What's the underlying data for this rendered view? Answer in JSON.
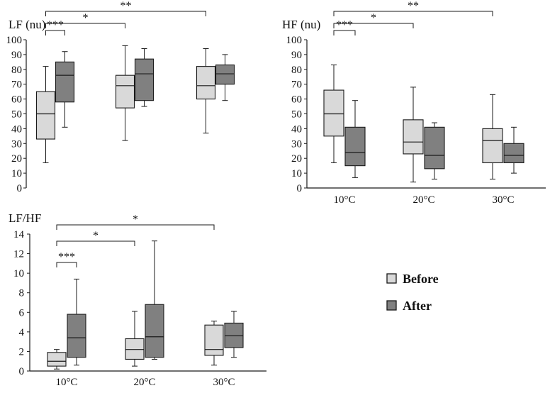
{
  "chart_data": [
    {
      "type": "box",
      "title": "LF (nu)",
      "ylim": [
        0,
        100
      ],
      "yticks": [
        0,
        10,
        20,
        30,
        40,
        50,
        60,
        70,
        80,
        90,
        100
      ],
      "categories": [
        "10°C",
        "20°C",
        "30°C"
      ],
      "show_category_labels": false,
      "series": [
        {
          "name": "Before",
          "boxes": [
            {
              "min": 17,
              "q1": 33,
              "median": 50,
              "q3": 65,
              "max": 82
            },
            {
              "min": 32,
              "q1": 54,
              "median": 69,
              "q3": 76,
              "max": 96
            },
            {
              "min": 37,
              "q1": 60,
              "median": 69,
              "q3": 82,
              "max": 94
            }
          ]
        },
        {
          "name": "After",
          "boxes": [
            {
              "min": 41,
              "q1": 58,
              "median": 76,
              "q3": 85,
              "max": 92
            },
            {
              "min": 55,
              "q1": 59,
              "median": 77,
              "q3": 87,
              "max": 94
            },
            {
              "min": 59,
              "q1": 70,
              "median": 77,
              "q3": 83,
              "max": 90
            }
          ]
        }
      ],
      "significance": [
        {
          "from": 0,
          "to": 0,
          "label": "***"
        },
        {
          "from": 0,
          "to": 1,
          "label": "*"
        },
        {
          "from": 0,
          "to": 2,
          "label": "**"
        }
      ]
    },
    {
      "type": "box",
      "title": "HF (nu)",
      "ylim": [
        0,
        100
      ],
      "yticks": [
        0,
        10,
        20,
        30,
        40,
        50,
        60,
        70,
        80,
        90,
        100
      ],
      "categories": [
        "10°C",
        "20°C",
        "30°C"
      ],
      "show_category_labels": true,
      "series": [
        {
          "name": "Before",
          "boxes": [
            {
              "min": 17,
              "q1": 35,
              "median": 50,
              "q3": 66,
              "max": 83
            },
            {
              "min": 4,
              "q1": 23,
              "median": 31,
              "q3": 46,
              "max": 68
            },
            {
              "min": 6,
              "q1": 17,
              "median": 32,
              "q3": 40,
              "max": 63
            }
          ]
        },
        {
          "name": "After",
          "boxes": [
            {
              "min": 7,
              "q1": 15,
              "median": 24,
              "q3": 41,
              "max": 59
            },
            {
              "min": 6,
              "q1": 13,
              "median": 22,
              "q3": 41,
              "max": 44
            },
            {
              "min": 10,
              "q1": 17,
              "median": 22,
              "q3": 30,
              "max": 41
            }
          ]
        }
      ],
      "significance": [
        {
          "from": 0,
          "to": 0,
          "label": "***"
        },
        {
          "from": 0,
          "to": 1,
          "label": "*"
        },
        {
          "from": 0,
          "to": 2,
          "label": "**"
        }
      ]
    },
    {
      "type": "box",
      "title": "LF/HF",
      "ylim": [
        0,
        14
      ],
      "yticks": [
        0,
        2,
        4,
        6,
        8,
        10,
        12,
        14
      ],
      "categories": [
        "10°C",
        "20°C",
        "30°C"
      ],
      "show_category_labels": true,
      "series": [
        {
          "name": "Before",
          "boxes": [
            {
              "min": 0.2,
              "q1": 0.5,
              "median": 1.0,
              "q3": 1.9,
              "max": 2.2
            },
            {
              "min": 0.5,
              "q1": 1.2,
              "median": 2.2,
              "q3": 3.3,
              "max": 6.1
            },
            {
              "min": 0.6,
              "q1": 1.6,
              "median": 2.2,
              "q3": 4.7,
              "max": 5.1
            }
          ]
        },
        {
          "name": "After",
          "boxes": [
            {
              "min": 0.6,
              "q1": 1.4,
              "median": 3.4,
              "q3": 5.8,
              "max": 9.4
            },
            {
              "min": 1.2,
              "q1": 1.4,
              "median": 3.5,
              "q3": 6.8,
              "max": 13.3
            },
            {
              "min": 1.4,
              "q1": 2.4,
              "median": 3.6,
              "q3": 4.9,
              "max": 6.1
            }
          ]
        }
      ],
      "significance": [
        {
          "from": 0,
          "to": 0,
          "label": "***"
        },
        {
          "from": 0,
          "to": 1,
          "label": "*"
        },
        {
          "from": 0,
          "to": 2,
          "label": "*"
        }
      ]
    }
  ],
  "legend": {
    "items": [
      {
        "label": "Before",
        "color": "#d9d9d9"
      },
      {
        "label": "After",
        "color": "#808080"
      }
    ]
  },
  "colors": {
    "before": "#d9d9d9",
    "after": "#808080",
    "stroke": "#1a1a1a"
  }
}
